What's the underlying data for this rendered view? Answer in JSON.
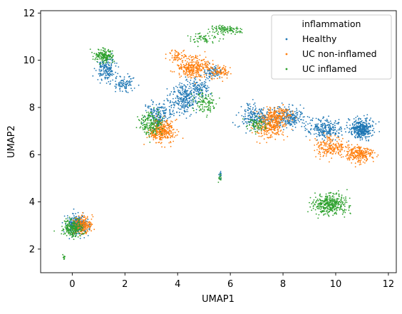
{
  "chart_data": {
    "type": "scatter",
    "xlabel": "UMAP1",
    "ylabel": "UMAP2",
    "xlim": [
      -1.2,
      12.3
    ],
    "ylim": [
      1.0,
      12.1
    ],
    "xticks": [
      0,
      2,
      4,
      6,
      8,
      10,
      12
    ],
    "yticks": [
      2,
      4,
      6,
      8,
      10,
      12
    ],
    "xtick_labels": [
      "0",
      "2",
      "4",
      "6",
      "8",
      "10",
      "12"
    ],
    "ytick_labels": [
      "2",
      "4",
      "6",
      "8",
      "10",
      "12"
    ],
    "grid": false,
    "legend": {
      "title": "inflammation",
      "placement": "top-right",
      "entries": [
        "Healthy",
        "UC non-inflamed",
        "UC inflamed"
      ]
    },
    "series": [
      {
        "name": "Healthy",
        "color": "#1f77b4",
        "clusters": [
          {
            "cx": 0.2,
            "cy": 3.0,
            "sx": 0.28,
            "sy": 0.3,
            "n": 320
          },
          {
            "cx": 1.3,
            "cy": 9.6,
            "sx": 0.25,
            "sy": 0.35,
            "n": 160
          },
          {
            "cx": 2.0,
            "cy": 9.0,
            "sx": 0.25,
            "sy": 0.25,
            "n": 90
          },
          {
            "cx": 3.3,
            "cy": 7.7,
            "sx": 0.35,
            "sy": 0.4,
            "n": 180
          },
          {
            "cx": 4.3,
            "cy": 8.4,
            "sx": 0.35,
            "sy": 0.45,
            "n": 260
          },
          {
            "cx": 4.8,
            "cy": 8.8,
            "sx": 0.3,
            "sy": 0.3,
            "n": 100
          },
          {
            "cx": 5.4,
            "cy": 9.5,
            "sx": 0.3,
            "sy": 0.2,
            "n": 80
          },
          {
            "cx": 7.0,
            "cy": 7.6,
            "sx": 0.45,
            "sy": 0.35,
            "n": 220
          },
          {
            "cx": 8.2,
            "cy": 7.6,
            "sx": 0.45,
            "sy": 0.3,
            "n": 220
          },
          {
            "cx": 9.6,
            "cy": 7.1,
            "sx": 0.45,
            "sy": 0.3,
            "n": 240
          },
          {
            "cx": 11.0,
            "cy": 7.1,
            "sx": 0.3,
            "sy": 0.3,
            "n": 380
          },
          {
            "cx": 5.6,
            "cy": 5.1,
            "sx": 0.04,
            "sy": 0.15,
            "n": 15
          }
        ]
      },
      {
        "name": "UC non-inflamed",
        "color": "#ff7f0e",
        "clusters": [
          {
            "cx": 0.4,
            "cy": 3.0,
            "sx": 0.25,
            "sy": 0.28,
            "n": 220
          },
          {
            "cx": 3.4,
            "cy": 7.0,
            "sx": 0.35,
            "sy": 0.35,
            "n": 320
          },
          {
            "cx": 4.6,
            "cy": 9.7,
            "sx": 0.4,
            "sy": 0.3,
            "n": 300
          },
          {
            "cx": 4.0,
            "cy": 10.2,
            "sx": 0.3,
            "sy": 0.2,
            "n": 60
          },
          {
            "cx": 5.6,
            "cy": 9.5,
            "sx": 0.3,
            "sy": 0.2,
            "n": 90
          },
          {
            "cx": 7.5,
            "cy": 7.2,
            "sx": 0.4,
            "sy": 0.35,
            "n": 260
          },
          {
            "cx": 7.8,
            "cy": 7.7,
            "sx": 0.4,
            "sy": 0.25,
            "n": 160
          },
          {
            "cx": 9.8,
            "cy": 6.3,
            "sx": 0.45,
            "sy": 0.3,
            "n": 200
          },
          {
            "cx": 10.9,
            "cy": 6.0,
            "sx": 0.35,
            "sy": 0.25,
            "n": 240
          }
        ]
      },
      {
        "name": "UC inflamed",
        "color": "#2ca02c",
        "clusters": [
          {
            "cx": 0.0,
            "cy": 2.9,
            "sx": 0.3,
            "sy": 0.25,
            "n": 200
          },
          {
            "cx": -0.3,
            "cy": 1.65,
            "sx": 0.04,
            "sy": 0.08,
            "n": 10
          },
          {
            "cx": 1.2,
            "cy": 10.2,
            "sx": 0.25,
            "sy": 0.2,
            "n": 160
          },
          {
            "cx": 3.0,
            "cy": 7.3,
            "sx": 0.3,
            "sy": 0.35,
            "n": 180
          },
          {
            "cx": 5.0,
            "cy": 8.2,
            "sx": 0.3,
            "sy": 0.3,
            "n": 100
          },
          {
            "cx": 5.8,
            "cy": 11.3,
            "sx": 0.45,
            "sy": 0.12,
            "n": 110
          },
          {
            "cx": 5.0,
            "cy": 10.9,
            "sx": 0.4,
            "sy": 0.15,
            "n": 60
          },
          {
            "cx": 7.0,
            "cy": 7.3,
            "sx": 0.3,
            "sy": 0.25,
            "n": 70
          },
          {
            "cx": 9.8,
            "cy": 3.9,
            "sx": 0.45,
            "sy": 0.3,
            "n": 360
          },
          {
            "cx": 5.6,
            "cy": 5.0,
            "sx": 0.04,
            "sy": 0.12,
            "n": 12
          }
        ]
      }
    ]
  }
}
